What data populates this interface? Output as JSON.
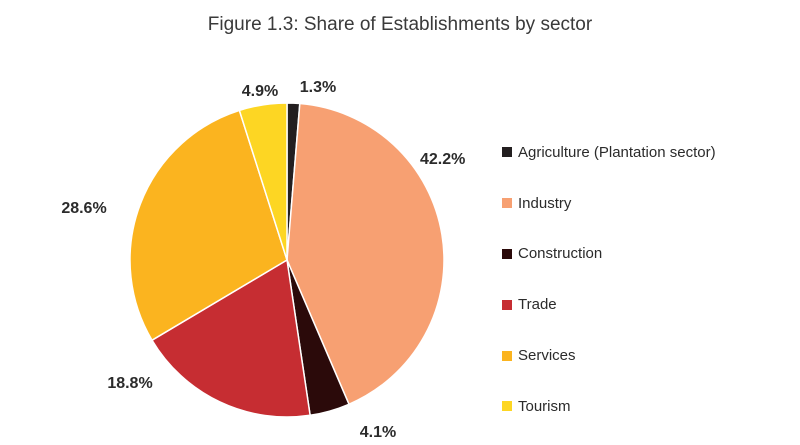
{
  "chart_data": {
    "type": "pie",
    "title": "Figure 1.3: Share of Establishments by sector",
    "legend_position": "right",
    "slices": [
      {
        "name": "Agriculture (Plantation sector)",
        "value": 1.3,
        "label": "1.3%",
        "color": "#231f20"
      },
      {
        "name": "Industry",
        "value": 42.2,
        "label": "42.2%",
        "color": "#f7a072"
      },
      {
        "name": "Construction",
        "value": 4.1,
        "label": "4.1%",
        "color": "#2b0a0a"
      },
      {
        "name": "Trade",
        "value": 18.8,
        "label": "18.8%",
        "color": "#c62d32"
      },
      {
        "name": "Services",
        "value": 28.6,
        "label": "28.6%",
        "color": "#fbb41f"
      },
      {
        "name": "Tourism",
        "value": 4.9,
        "label": "4.9%",
        "color": "#fdd623"
      }
    ]
  }
}
